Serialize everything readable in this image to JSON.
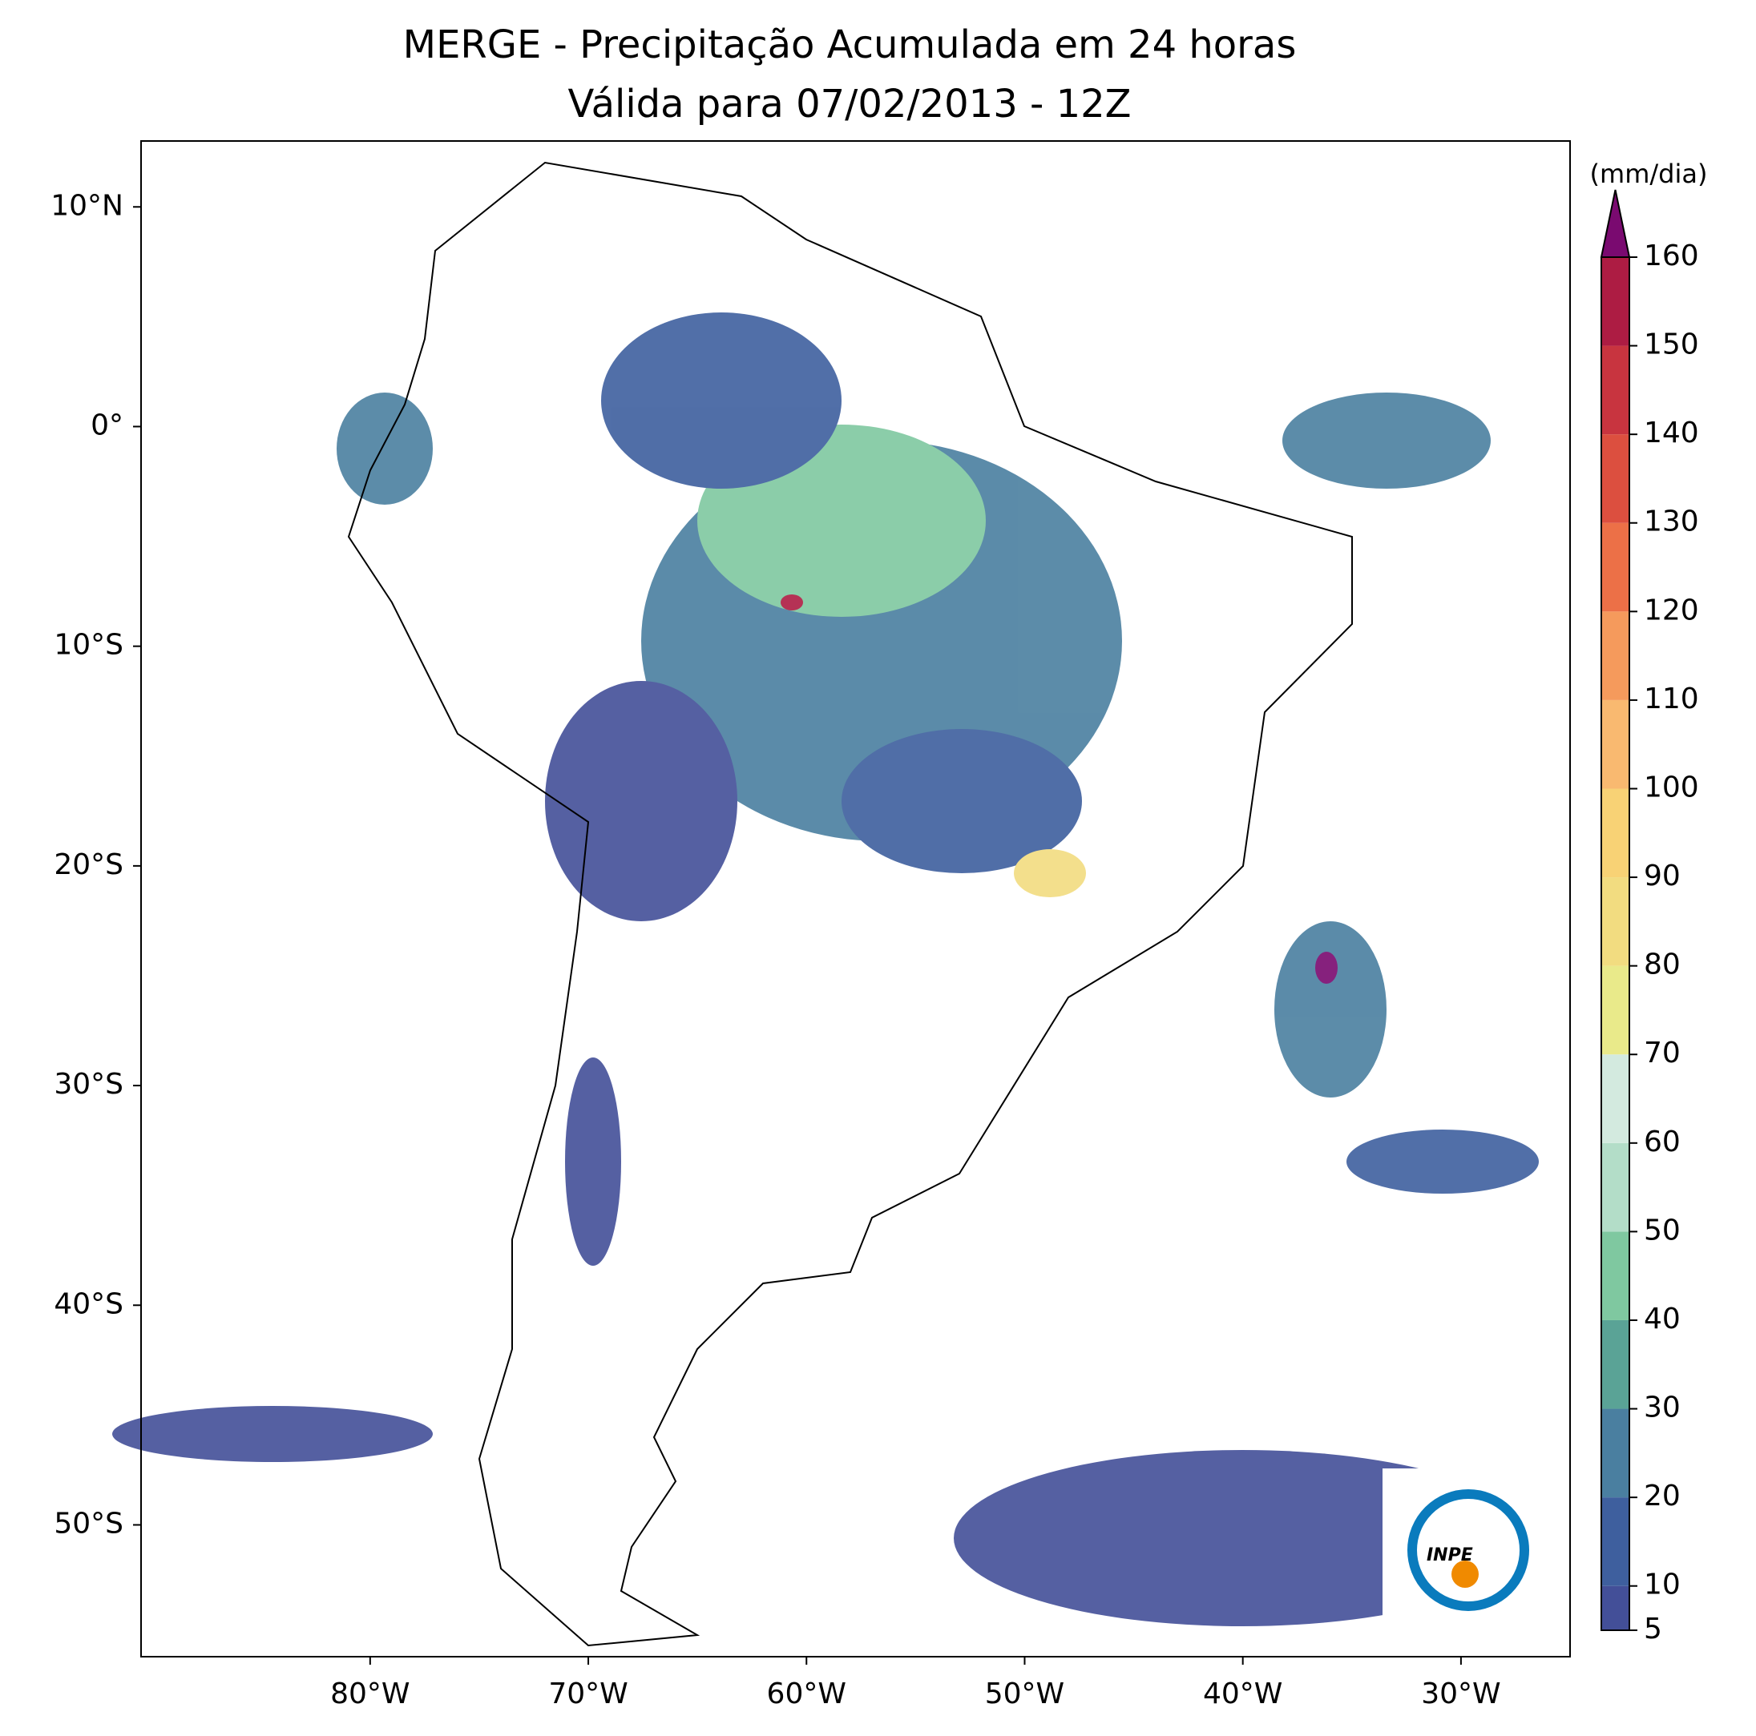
{
  "chart_data": {
    "type": "map",
    "title": "MERGE - Precipitação Acumulada em 24 horas",
    "subtitle": "Válida para 07/02/2013 - 12Z",
    "xlim": [
      -90.5,
      -25
    ],
    "ylim": [
      -56,
      13
    ],
    "xticks": [
      {
        "value": -80,
        "label": "80°W"
      },
      {
        "value": -70,
        "label": "70°W"
      },
      {
        "value": -60,
        "label": "60°W"
      },
      {
        "value": -50,
        "label": "50°W"
      },
      {
        "value": -40,
        "label": "40°W"
      },
      {
        "value": -30,
        "label": "30°W"
      }
    ],
    "yticks": [
      {
        "value": 10,
        "label": "10°N"
      },
      {
        "value": 0,
        "label": "0°"
      },
      {
        "value": -10,
        "label": "10°S"
      },
      {
        "value": -20,
        "label": "20°S"
      },
      {
        "value": -30,
        "label": "30°S"
      },
      {
        "value": -40,
        "label": "40°S"
      },
      {
        "value": -50,
        "label": "50°S"
      }
    ],
    "colorbar": {
      "label": "(mm/dia)",
      "lim": [
        5,
        160
      ],
      "ticks": [
        5,
        10,
        20,
        30,
        40,
        50,
        60,
        70,
        80,
        90,
        100,
        110,
        120,
        130,
        140,
        150,
        160
      ],
      "colors": [
        "#434f98",
        "#3e5f9e",
        "#4a7fa0",
        "#5aa396",
        "#7fc8a0",
        "#b3ddc8",
        "#d3eadf",
        "#e9ea8a",
        "#f2dc80",
        "#f8d275",
        "#f9b970",
        "#f59a5c",
        "#ec7047",
        "#dc4f3f",
        "#c8343f",
        "#ad1c43"
      ],
      "extend_color": "#7a0a70"
    },
    "logo_text": "INPE"
  }
}
